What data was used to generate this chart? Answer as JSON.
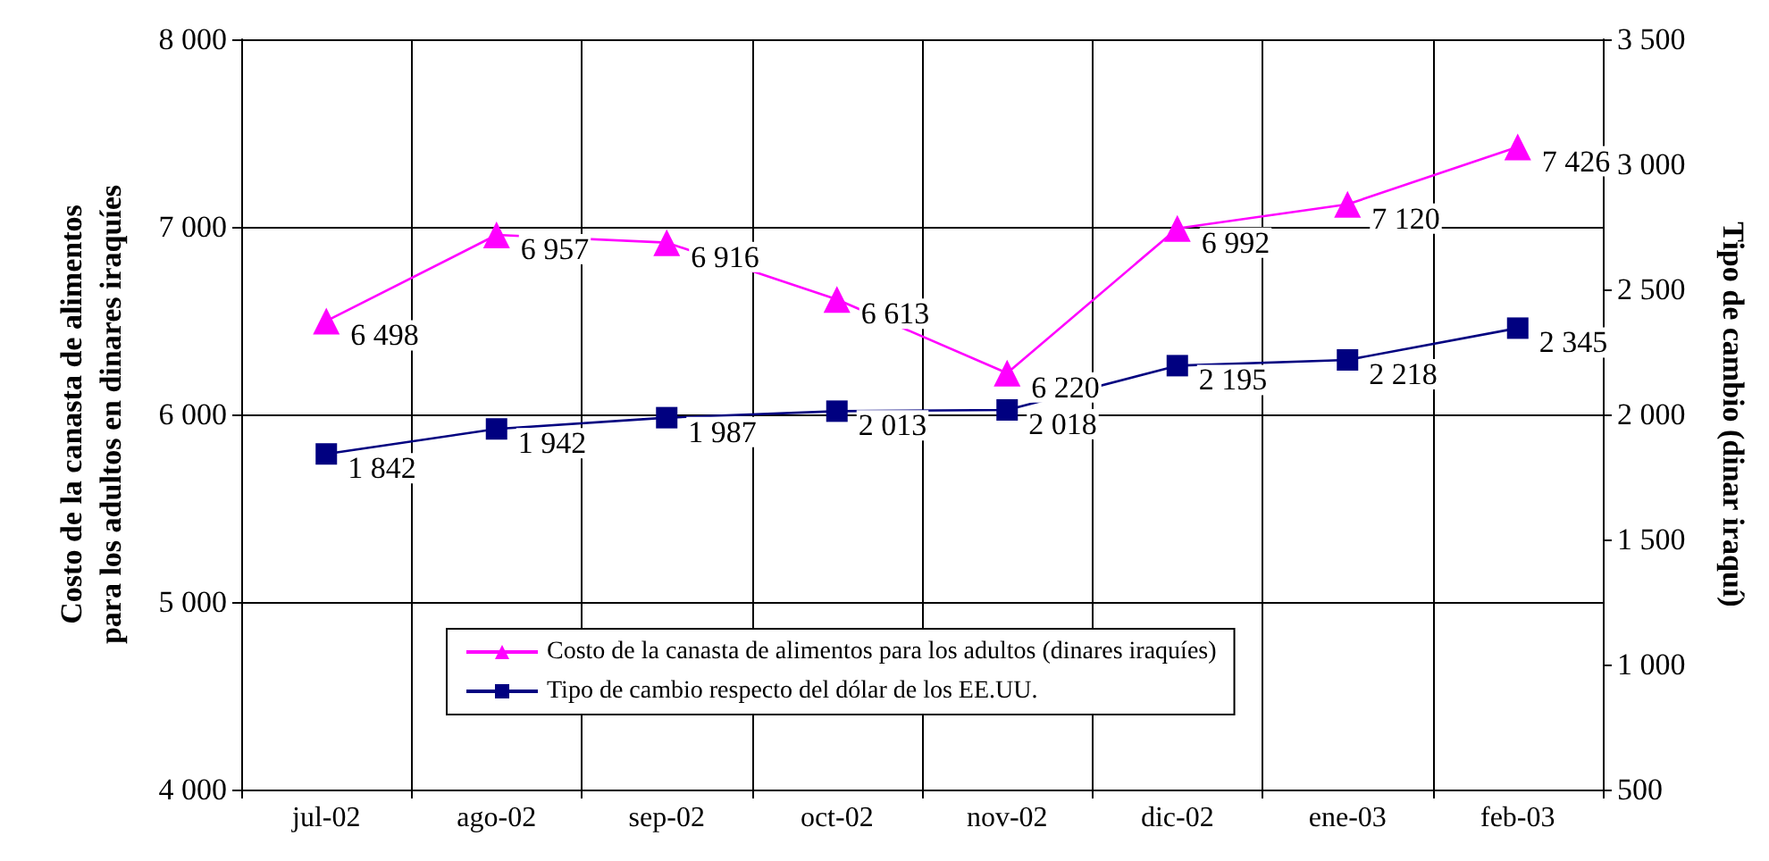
{
  "chart_data": {
    "type": "line",
    "ylabel": "Costo de la canasta de alimentos\npara los adultos en dinares iraquíes",
    "y2label": "Tipo de cambio (dinar iraquí)",
    "categories": [
      "jul-02",
      "ago-02",
      "sep-02",
      "oct-02",
      "nov-02",
      "dic-02",
      "ene-03",
      "feb-03"
    ],
    "series": [
      {
        "name": "Costo de la canasta de alimentos para los adultos (dinares iraquíes)",
        "color": "#ff00ff",
        "marker": "triangle",
        "values": [
          6498,
          6957,
          6916,
          6613,
          6220,
          6992,
          7120,
          7426
        ],
        "value_labels": [
          "6 498",
          "6 957",
          "6 916",
          "6 613",
          "6 220",
          "6 992",
          "7 120",
          "7 426"
        ]
      },
      {
        "name": "Tipo de cambio respecto del dólar de los EE.UU.",
        "color": "#000080",
        "marker": "square",
        "axis": "y2",
        "values": [
          1842,
          1942,
          1987,
          2013,
          2018,
          2195,
          2218,
          2345
        ],
        "value_labels": [
          "1 842",
          "1 942",
          "1 987",
          "2 013",
          "2 018",
          "2 195",
          "2 218",
          "2 345"
        ]
      }
    ],
    "ylim": [
      4000,
      8000
    ],
    "yticks": [
      {
        "value": 4000,
        "label": "4 000"
      },
      {
        "value": 5000,
        "label": "5 000"
      },
      {
        "value": 6000,
        "label": "6 000"
      },
      {
        "value": 7000,
        "label": "7 000"
      },
      {
        "value": 8000,
        "label": "8 000"
      }
    ],
    "y2lim": [
      500,
      3500
    ],
    "y2ticks": [
      500,
      {
        "value": 1000,
        "label": "1 000"
      },
      {
        "value": 1500,
        "label": "1 500"
      },
      {
        "value": 2000,
        "label": "2 000"
      },
      {
        "value": 2500,
        "label": "2 500"
      },
      {
        "value": 3000,
        "label": "3 000"
      },
      {
        "value": 3500,
        "label": "3 500"
      }
    ],
    "grid": true,
    "legend": "bottom"
  }
}
